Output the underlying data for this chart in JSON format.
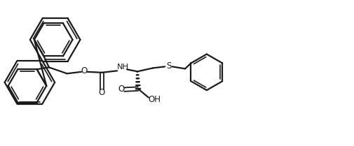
{
  "bg_color": "#ffffff",
  "line_color": "#1a1a1a",
  "line_width": 1.6,
  "fig_width": 5.05,
  "fig_height": 2.09,
  "dpi": 100,
  "xlim": [
    0,
    10.1
  ],
  "ylim": [
    0,
    4.18
  ]
}
